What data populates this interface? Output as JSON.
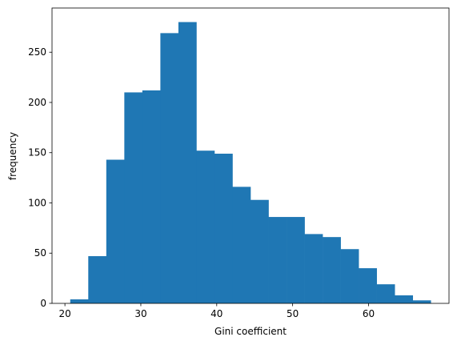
{
  "chart_data": {
    "type": "histogram",
    "x_label": "Gini coefficient",
    "y_label": "frequency",
    "bins": [
      20.7,
      23.075,
      25.45,
      27.825,
      30.2,
      32.575,
      34.95,
      37.325,
      39.7,
      42.075,
      44.45,
      46.825,
      49.2,
      51.575,
      53.95,
      56.325,
      58.7,
      61.075,
      63.45,
      65.825,
      68.2
    ],
    "values": [
      4,
      47,
      143,
      210,
      212,
      269,
      280,
      152,
      149,
      116,
      103,
      86,
      86,
      69,
      66,
      54,
      35,
      19,
      8,
      3
    ],
    "color": "#1f77b4",
    "xlim": [
      18.3,
      70.6
    ],
    "xticks": [
      20,
      30,
      40,
      50,
      60
    ],
    "ylim": [
      0,
      294
    ],
    "yticks": [
      0,
      50,
      100,
      150,
      200,
      250
    ],
    "grid": false
  }
}
